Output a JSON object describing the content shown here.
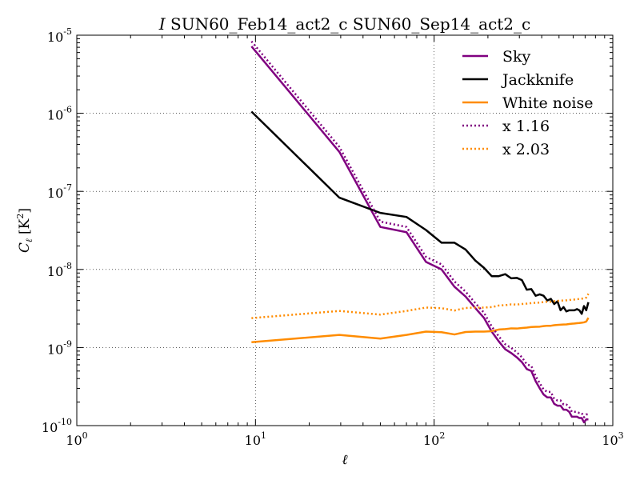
{
  "chart_data": {
    "type": "line",
    "title_italic": "I",
    "title": " SUN60_Feb14_act2_c SUN60_Sep14_act2_c",
    "xlabel": "ℓ",
    "ylabel_main": "C",
    "ylabel_sub": "ℓ",
    "ylabel_unit_pre": " [K",
    "ylabel_unit_exp": "2",
    "ylabel_unit_post": "]",
    "xscale": "log",
    "yscale": "log",
    "xlim": [
      1,
      1000
    ],
    "ylim": [
      1e-10,
      1e-05
    ],
    "grid": true,
    "legend_position": "top-right",
    "x_ticks": [
      {
        "value": 1,
        "base": "10",
        "exp": "0"
      },
      {
        "value": 10,
        "base": "10",
        "exp": "1"
      },
      {
        "value": 100,
        "base": "10",
        "exp": "2"
      },
      {
        "value": 1000,
        "base": "10",
        "exp": "3"
      }
    ],
    "y_ticks": [
      {
        "value": 1e-10,
        "base": "10",
        "exp": "-10"
      },
      {
        "value": 1e-09,
        "base": "10",
        "exp": "-9"
      },
      {
        "value": 1e-08,
        "base": "10",
        "exp": "-8"
      },
      {
        "value": 1e-07,
        "base": "10",
        "exp": "-7"
      },
      {
        "value": 1e-06,
        "base": "10",
        "exp": "-6"
      },
      {
        "value": 1e-05,
        "base": "10",
        "exp": "-5"
      }
    ],
    "series": [
      {
        "name": "Sky",
        "color": "#800080",
        "style": "solid",
        "points": [
          [
            9.5,
            7.2e-06
          ],
          [
            29.5,
            3.2e-07
          ],
          [
            50,
            3.5e-08
          ],
          [
            70,
            3e-08
          ],
          [
            90,
            1.25e-08
          ],
          [
            110,
            1e-08
          ],
          [
            130,
            6e-09
          ],
          [
            150,
            4.5e-09
          ],
          [
            170,
            3.2e-09
          ],
          [
            190,
            2.4e-09
          ],
          [
            210,
            1.6e-09
          ],
          [
            230,
            1.2e-09
          ],
          [
            250,
            9.5e-10
          ],
          [
            270,
            8.5e-10
          ],
          [
            290,
            7.5e-10
          ],
          [
            310,
            6.5e-10
          ],
          [
            330,
            5.3e-10
          ],
          [
            350,
            5e-10
          ],
          [
            370,
            3.7e-10
          ],
          [
            390,
            3e-10
          ],
          [
            410,
            2.5e-10
          ],
          [
            430,
            2.3e-10
          ],
          [
            450,
            2.3e-10
          ],
          [
            470,
            1.9e-10
          ],
          [
            490,
            1.8e-10
          ],
          [
            510,
            1.8e-10
          ],
          [
            530,
            1.6e-10
          ],
          [
            550,
            1.6e-10
          ],
          [
            570,
            1.5e-10
          ],
          [
            590,
            1.3e-10
          ],
          [
            610,
            1.3e-10
          ],
          [
            630,
            1.3e-10
          ],
          [
            650,
            1.25e-10
          ],
          [
            670,
            1.25e-10
          ],
          [
            690,
            1.1e-10
          ],
          [
            710,
            1.2e-10
          ],
          [
            730,
            1.2e-10
          ]
        ]
      },
      {
        "name": "Jackknife",
        "color": "#000000",
        "style": "solid",
        "points": [
          [
            9.5,
            1.05e-06
          ],
          [
            29.5,
            8.3e-08
          ],
          [
            50,
            5.3e-08
          ],
          [
            70,
            4.7e-08
          ],
          [
            90,
            3.2e-08
          ],
          [
            110,
            2.2e-08
          ],
          [
            130,
            2.2e-08
          ],
          [
            150,
            1.8e-08
          ],
          [
            170,
            1.3e-08
          ],
          [
            190,
            1.05e-08
          ],
          [
            210,
            8.2e-09
          ],
          [
            230,
            8.2e-09
          ],
          [
            250,
            8.7e-09
          ],
          [
            270,
            7.7e-09
          ],
          [
            290,
            7.8e-09
          ],
          [
            310,
            7.3e-09
          ],
          [
            330,
            5.5e-09
          ],
          [
            350,
            5.6e-09
          ],
          [
            370,
            4.6e-09
          ],
          [
            390,
            4.8e-09
          ],
          [
            410,
            4.6e-09
          ],
          [
            430,
            4e-09
          ],
          [
            450,
            4.2e-09
          ],
          [
            470,
            3.6e-09
          ],
          [
            490,
            3.9e-09
          ],
          [
            510,
            3e-09
          ],
          [
            530,
            3.3e-09
          ],
          [
            550,
            2.9e-09
          ],
          [
            570,
            3e-09
          ],
          [
            590,
            3e-09
          ],
          [
            610,
            3e-09
          ],
          [
            630,
            3.1e-09
          ],
          [
            650,
            3e-09
          ],
          [
            670,
            2.7e-09
          ],
          [
            690,
            3.4e-09
          ],
          [
            710,
            3e-09
          ],
          [
            730,
            3.8e-09
          ]
        ]
      },
      {
        "name": "White noise",
        "color": "#ff8c00",
        "style": "solid",
        "points": [
          [
            9.5,
            1.17e-09
          ],
          [
            29.5,
            1.45e-09
          ],
          [
            50,
            1.3e-09
          ],
          [
            70,
            1.45e-09
          ],
          [
            90,
            1.6e-09
          ],
          [
            110,
            1.57e-09
          ],
          [
            130,
            1.47e-09
          ],
          [
            150,
            1.58e-09
          ],
          [
            170,
            1.6e-09
          ],
          [
            190,
            1.6e-09
          ],
          [
            210,
            1.62e-09
          ],
          [
            230,
            1.7e-09
          ],
          [
            250,
            1.72e-09
          ],
          [
            270,
            1.76e-09
          ],
          [
            290,
            1.75e-09
          ],
          [
            310,
            1.78e-09
          ],
          [
            330,
            1.8e-09
          ],
          [
            350,
            1.83e-09
          ],
          [
            370,
            1.84e-09
          ],
          [
            390,
            1.85e-09
          ],
          [
            410,
            1.88e-09
          ],
          [
            430,
            1.9e-09
          ],
          [
            450,
            1.9e-09
          ],
          [
            470,
            1.93e-09
          ],
          [
            490,
            1.95e-09
          ],
          [
            510,
            1.96e-09
          ],
          [
            530,
            1.97e-09
          ],
          [
            550,
            1.98e-09
          ],
          [
            570,
            2e-09
          ],
          [
            590,
            2.02e-09
          ],
          [
            610,
            2.03e-09
          ],
          [
            630,
            2.05e-09
          ],
          [
            650,
            2.06e-09
          ],
          [
            670,
            2.08e-09
          ],
          [
            690,
            2.1e-09
          ],
          [
            710,
            2.15e-09
          ],
          [
            730,
            2.4e-09
          ]
        ]
      },
      {
        "name": "x 1.16",
        "color": "#800080",
        "style": "dotted",
        "points": [
          [
            9.5,
            8.35e-06
          ],
          [
            29.5,
            3.7e-07
          ],
          [
            50,
            4.1e-08
          ],
          [
            70,
            3.5e-08
          ],
          [
            90,
            1.45e-08
          ],
          [
            110,
            1.16e-08
          ],
          [
            130,
            7e-09
          ],
          [
            150,
            5.2e-09
          ],
          [
            170,
            3.7e-09
          ],
          [
            190,
            2.8e-09
          ],
          [
            210,
            1.86e-09
          ],
          [
            230,
            1.39e-09
          ],
          [
            250,
            1.1e-09
          ],
          [
            270,
            9.9e-10
          ],
          [
            290,
            8.7e-10
          ],
          [
            310,
            7.5e-10
          ],
          [
            330,
            6.1e-10
          ],
          [
            350,
            5.8e-10
          ],
          [
            370,
            4.3e-10
          ],
          [
            390,
            3.5e-10
          ],
          [
            410,
            2.9e-10
          ],
          [
            430,
            2.7e-10
          ],
          [
            450,
            2.7e-10
          ],
          [
            470,
            2.2e-10
          ],
          [
            490,
            2.1e-10
          ],
          [
            510,
            2.1e-10
          ],
          [
            530,
            1.86e-10
          ],
          [
            550,
            1.86e-10
          ],
          [
            570,
            1.74e-10
          ],
          [
            590,
            1.5e-10
          ],
          [
            610,
            1.5e-10
          ],
          [
            630,
            1.5e-10
          ],
          [
            650,
            1.45e-10
          ],
          [
            670,
            1.45e-10
          ],
          [
            690,
            1.28e-10
          ],
          [
            710,
            1.39e-10
          ],
          [
            730,
            1.39e-10
          ]
        ]
      },
      {
        "name": "x 2.03",
        "color": "#ff8c00",
        "style": "dotted",
        "points": [
          [
            9.5,
            2.38e-09
          ],
          [
            29.5,
            2.94e-09
          ],
          [
            50,
            2.64e-09
          ],
          [
            70,
            2.94e-09
          ],
          [
            90,
            3.25e-09
          ],
          [
            110,
            3.19e-09
          ],
          [
            130,
            2.98e-09
          ],
          [
            150,
            3.21e-09
          ],
          [
            170,
            3.25e-09
          ],
          [
            190,
            3.25e-09
          ],
          [
            210,
            3.29e-09
          ],
          [
            230,
            3.45e-09
          ],
          [
            250,
            3.49e-09
          ],
          [
            270,
            3.57e-09
          ],
          [
            290,
            3.55e-09
          ],
          [
            310,
            3.61e-09
          ],
          [
            330,
            3.65e-09
          ],
          [
            350,
            3.71e-09
          ],
          [
            370,
            3.74e-09
          ],
          [
            390,
            3.76e-09
          ],
          [
            410,
            3.82e-09
          ],
          [
            430,
            3.86e-09
          ],
          [
            450,
            3.86e-09
          ],
          [
            470,
            3.92e-09
          ],
          [
            490,
            3.96e-09
          ],
          [
            510,
            3.98e-09
          ],
          [
            530,
            4e-09
          ],
          [
            550,
            4.02e-09
          ],
          [
            570,
            4.06e-09
          ],
          [
            590,
            4.1e-09
          ],
          [
            610,
            4.12e-09
          ],
          [
            630,
            4.16e-09
          ],
          [
            650,
            4.18e-09
          ],
          [
            670,
            4.22e-09
          ],
          [
            690,
            4.26e-09
          ],
          [
            710,
            4.36e-09
          ],
          [
            730,
            4.87e-09
          ]
        ]
      }
    ]
  }
}
